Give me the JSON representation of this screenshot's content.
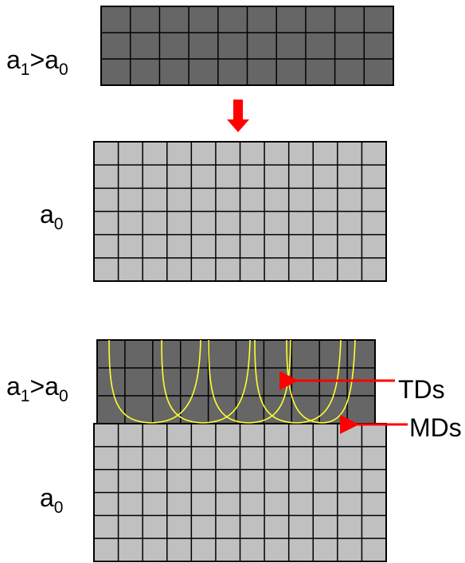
{
  "top_panel": {
    "film_label": [
      "a",
      "1",
      ">a",
      "0"
    ],
    "substrate_label": [
      "a",
      "0"
    ]
  },
  "bottom_panel": {
    "film_label": [
      "a",
      "1",
      ">a",
      "0"
    ],
    "substrate_label": [
      "a",
      "0"
    ],
    "td_label": "TDs",
    "md_label": "MDs"
  }
}
